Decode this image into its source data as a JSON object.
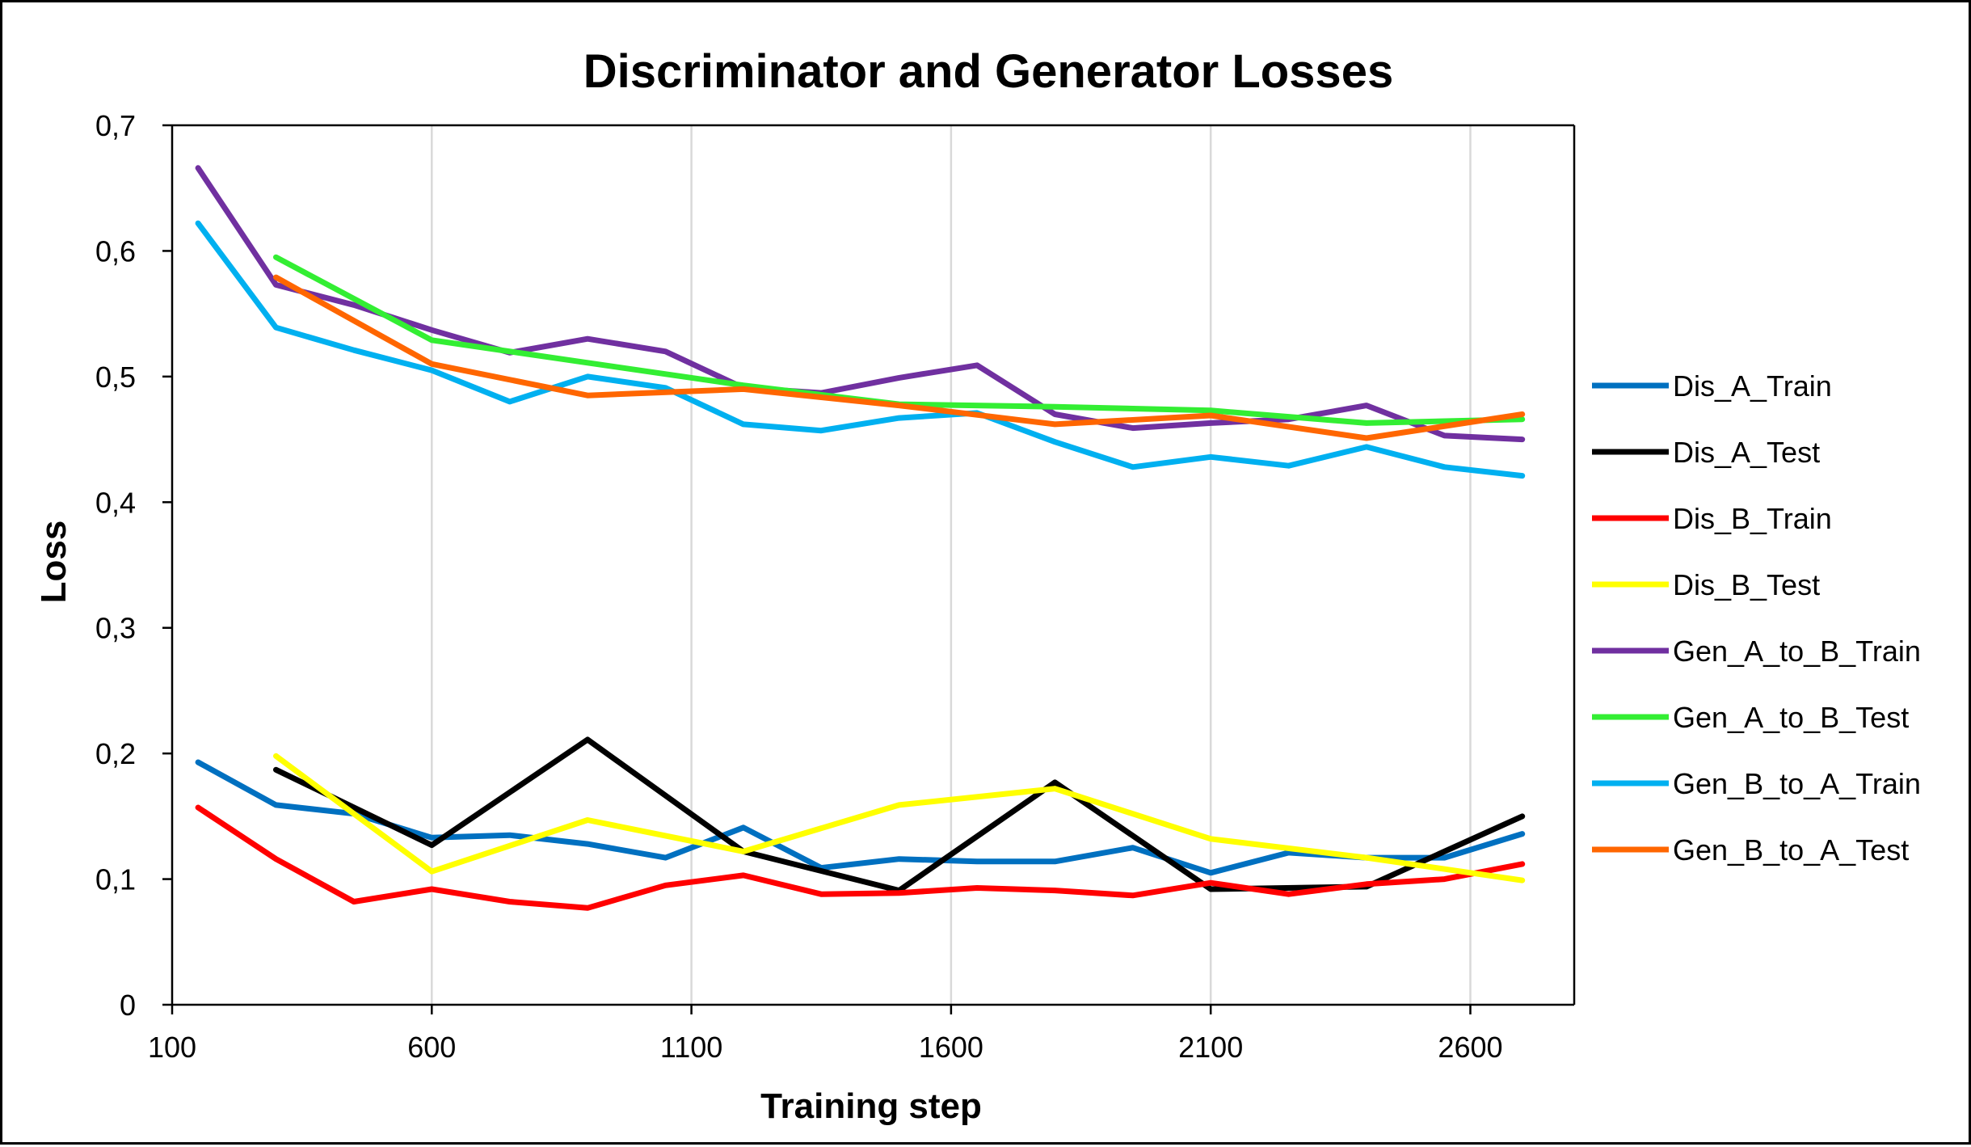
{
  "chart_data": {
    "type": "line",
    "title": "Discriminator and Generator Losses",
    "xlabel": "Training step",
    "ylabel": "Loss",
    "xlim": [
      100,
      2800
    ],
    "ylim": [
      0,
      0.7
    ],
    "x_ticks": [
      100,
      600,
      1100,
      1600,
      2100,
      2600
    ],
    "x_tick_labels": [
      "100",
      "600",
      "1100",
      "1600",
      "2100",
      "2600"
    ],
    "y_ticks": [
      0,
      0.1,
      0.2,
      0.3,
      0.4,
      0.5,
      0.6,
      0.7
    ],
    "y_tick_labels": [
      "0",
      "0,1",
      "0,2",
      "0,3",
      "0,4",
      "0,5",
      "0,6",
      "0,7"
    ],
    "grid": "vertical",
    "legend_position": "right",
    "series": [
      {
        "name": "Dis_A_Train",
        "color": "#0070C0",
        "x": [
          150,
          300,
          450,
          600,
          750,
          900,
          1050,
          1200,
          1350,
          1500,
          1650,
          1800,
          1950,
          2100,
          2250,
          2400,
          2550,
          2700
        ],
        "values": [
          0.193,
          0.159,
          0.152,
          0.133,
          0.135,
          0.128,
          0.117,
          0.141,
          0.109,
          0.116,
          0.114,
          0.114,
          0.125,
          0.105,
          0.121,
          0.117,
          0.117,
          0.136
        ]
      },
      {
        "name": "Dis_A_Test",
        "color": "#000000",
        "x": [
          300,
          600,
          900,
          1200,
          1500,
          1800,
          2100,
          2400,
          2700
        ],
        "values": [
          0.187,
          0.127,
          0.211,
          0.122,
          0.091,
          0.177,
          0.092,
          0.094,
          0.15
        ]
      },
      {
        "name": "Dis_B_Train",
        "color": "#FF0000",
        "x": [
          150,
          300,
          450,
          600,
          750,
          900,
          1050,
          1200,
          1350,
          1500,
          1650,
          1800,
          1950,
          2100,
          2250,
          2400,
          2550,
          2700
        ],
        "values": [
          0.157,
          0.116,
          0.082,
          0.092,
          0.082,
          0.077,
          0.095,
          0.103,
          0.088,
          0.089,
          0.093,
          0.091,
          0.087,
          0.097,
          0.088,
          0.096,
          0.1,
          0.112
        ]
      },
      {
        "name": "Dis_B_Test",
        "color": "#FFFF00",
        "x": [
          300,
          600,
          900,
          1200,
          1500,
          1800,
          2100,
          2400,
          2700
        ],
        "values": [
          0.198,
          0.106,
          0.147,
          0.122,
          0.159,
          0.172,
          0.132,
          0.117,
          0.099
        ]
      },
      {
        "name": "Gen_A_to_B_Train",
        "color": "#7030A0",
        "x": [
          150,
          300,
          450,
          600,
          750,
          900,
          1050,
          1200,
          1350,
          1500,
          1650,
          1800,
          1950,
          2100,
          2250,
          2400,
          2550,
          2700
        ],
        "values": [
          0.666,
          0.573,
          0.557,
          0.537,
          0.519,
          0.53,
          0.52,
          0.491,
          0.487,
          0.499,
          0.509,
          0.47,
          0.459,
          0.463,
          0.466,
          0.477,
          0.453,
          0.45
        ]
      },
      {
        "name": "Gen_A_to_B_Test",
        "color": "#33EE33",
        "x": [
          300,
          600,
          900,
          1200,
          1500,
          1800,
          2100,
          2400,
          2700
        ],
        "values": [
          0.595,
          0.529,
          0.511,
          0.493,
          0.478,
          0.476,
          0.473,
          0.463,
          0.466
        ]
      },
      {
        "name": "Gen_B_to_A_Train",
        "color": "#00B0F0",
        "x": [
          150,
          300,
          450,
          600,
          750,
          900,
          1050,
          1200,
          1350,
          1500,
          1650,
          1800,
          1950,
          2100,
          2250,
          2400,
          2550,
          2700
        ],
        "values": [
          0.622,
          0.539,
          0.521,
          0.505,
          0.48,
          0.5,
          0.491,
          0.462,
          0.457,
          0.467,
          0.471,
          0.448,
          0.428,
          0.436,
          0.429,
          0.444,
          0.428,
          0.421
        ]
      },
      {
        "name": "Gen_B_to_A_Test",
        "color": "#FF6600",
        "x": [
          300,
          600,
          900,
          1200,
          1500,
          1800,
          2100,
          2400,
          2700
        ],
        "values": [
          0.579,
          0.51,
          0.485,
          0.49,
          0.477,
          0.462,
          0.469,
          0.451,
          0.47
        ]
      }
    ]
  }
}
